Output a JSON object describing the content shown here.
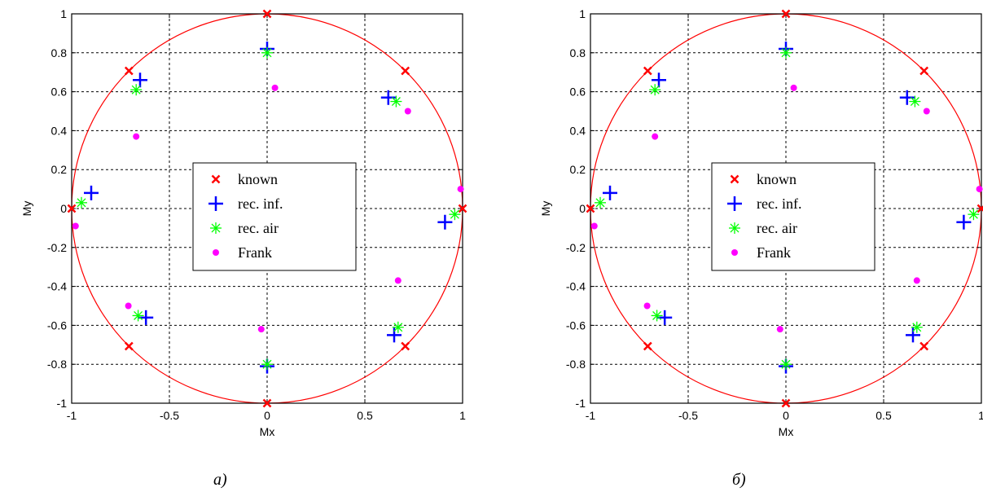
{
  "colors": {
    "known": "#ff0000",
    "rec_inf": "#0000ff",
    "rec_air": "#00ff00",
    "frank": "#ff00ff",
    "circle": "#ff0000",
    "grid": "#000000"
  },
  "chart_data": [
    {
      "type": "scatter",
      "caption": "а)",
      "xlabel": "Mx",
      "ylabel": "My",
      "xlim": [
        -1,
        1
      ],
      "ylim": [
        -1,
        1
      ],
      "xticks": [
        "-1",
        "-0.5",
        "0",
        "0.5",
        "1"
      ],
      "yticks": [
        "1",
        "0.8",
        "0.6",
        "0.4",
        "0.2",
        "0",
        "-0.2",
        "-0.4",
        "-0.6",
        "-0.8",
        "-1"
      ],
      "grid": true,
      "legend_position": "center",
      "circle": {
        "center": [
          0,
          0
        ],
        "radius": 1
      },
      "series": [
        {
          "name": "known",
          "marker": "x",
          "color": "#ff0000",
          "points": [
            [
              0,
              1
            ],
            [
              0.707,
              0.707
            ],
            [
              1,
              0
            ],
            [
              0.707,
              -0.707
            ],
            [
              0,
              -1
            ],
            [
              -0.707,
              -0.707
            ],
            [
              -1,
              0
            ],
            [
              -0.707,
              0.707
            ]
          ]
        },
        {
          "name": "rec. inf.",
          "marker": "+",
          "color": "#0000ff",
          "points": [
            [
              0,
              0.82
            ],
            [
              0.62,
              0.57
            ],
            [
              0.91,
              -0.07
            ],
            [
              0.65,
              -0.65
            ],
            [
              0,
              -0.81
            ],
            [
              -0.62,
              -0.56
            ],
            [
              -0.9,
              0.08
            ],
            [
              -0.65,
              0.66
            ]
          ]
        },
        {
          "name": "rec. air",
          "marker": "*",
          "color": "#00ff00",
          "points": [
            [
              0,
              0.8
            ],
            [
              0.66,
              0.55
            ],
            [
              0.96,
              -0.03
            ],
            [
              0.67,
              -0.61
            ],
            [
              0,
              -0.8
            ],
            [
              -0.66,
              -0.55
            ],
            [
              -0.95,
              0.03
            ],
            [
              -0.67,
              0.61
            ]
          ]
        },
        {
          "name": "Frank",
          "marker": "dot",
          "color": "#ff00ff",
          "points": [
            [
              0.04,
              0.62
            ],
            [
              0.72,
              0.5
            ],
            [
              0.99,
              0.1
            ],
            [
              0.67,
              -0.37
            ],
            [
              -0.03,
              -0.62
            ],
            [
              -0.71,
              -0.5
            ],
            [
              -0.98,
              -0.09
            ],
            [
              -0.67,
              0.37
            ]
          ]
        }
      ]
    },
    {
      "type": "scatter",
      "caption": "б)",
      "xlabel": "Mx",
      "ylabel": "My",
      "xlim": [
        -1,
        1
      ],
      "ylim": [
        -1,
        1
      ],
      "xticks": [
        "-1",
        "-0.5",
        "0",
        "0.5",
        "1"
      ],
      "yticks": [
        "1",
        "0.8",
        "0.6",
        "0.4",
        "0.2",
        "0",
        "-0.2",
        "-0.4",
        "-0.6",
        "-0.8",
        "-1"
      ],
      "grid": true,
      "legend_position": "center",
      "circle": {
        "center": [
          0,
          0
        ],
        "radius": 1
      },
      "series": [
        {
          "name": "known",
          "marker": "x",
          "color": "#ff0000",
          "points": [
            [
              0,
              1
            ],
            [
              0.707,
              0.707
            ],
            [
              1,
              0
            ],
            [
              0.707,
              -0.707
            ],
            [
              0,
              -1
            ],
            [
              -0.707,
              -0.707
            ],
            [
              -1,
              0
            ],
            [
              -0.707,
              0.707
            ]
          ]
        },
        {
          "name": "rec. inf.",
          "marker": "+",
          "color": "#0000ff",
          "points": [
            [
              0,
              0.82
            ],
            [
              0.62,
              0.57
            ],
            [
              0.91,
              -0.07
            ],
            [
              0.65,
              -0.65
            ],
            [
              0,
              -0.81
            ],
            [
              -0.62,
              -0.56
            ],
            [
              -0.9,
              0.08
            ],
            [
              -0.65,
              0.66
            ]
          ]
        },
        {
          "name": "rec. air",
          "marker": "*",
          "color": "#00ff00",
          "points": [
            [
              0,
              0.8
            ],
            [
              0.66,
              0.55
            ],
            [
              0.96,
              -0.03
            ],
            [
              0.67,
              -0.61
            ],
            [
              0,
              -0.8
            ],
            [
              -0.66,
              -0.55
            ],
            [
              -0.95,
              0.03
            ],
            [
              -0.67,
              0.61
            ]
          ]
        },
        {
          "name": "Frank",
          "marker": "dot",
          "color": "#ff00ff",
          "points": [
            [
              0.04,
              0.62
            ],
            [
              0.72,
              0.5
            ],
            [
              0.99,
              0.1
            ],
            [
              0.67,
              -0.37
            ],
            [
              -0.03,
              -0.62
            ],
            [
              -0.71,
              -0.5
            ],
            [
              -0.98,
              -0.09
            ],
            [
              -0.67,
              0.37
            ]
          ]
        }
      ]
    }
  ]
}
